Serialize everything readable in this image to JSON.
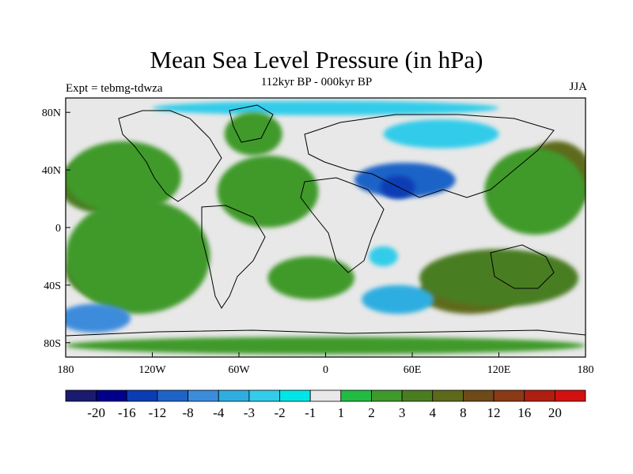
{
  "title": "Mean Sea Level Pressure (in hPa)",
  "subtitle": "112kyr BP - 000kyr BP",
  "experiment": "Expt = tebmg-tdwza",
  "season": "JJA",
  "axes": {
    "y_ticks": [
      {
        "label": "80N",
        "lat": 80
      },
      {
        "label": "40N",
        "lat": 40
      },
      {
        "label": "0",
        "lat": 0
      },
      {
        "label": "40S",
        "lat": -40
      },
      {
        "label": "80S",
        "lat": -80
      }
    ],
    "x_ticks": [
      {
        "label": "180",
        "lon": -180
      },
      {
        "label": "120W",
        "lon": -120
      },
      {
        "label": "60W",
        "lon": -60
      },
      {
        "label": "0",
        "lon": 0
      },
      {
        "label": "60E",
        "lon": 60
      },
      {
        "label": "120E",
        "lon": 120
      },
      {
        "label": "180",
        "lon": 180
      }
    ]
  },
  "colorbar": {
    "colors": [
      "#1a1a6e",
      "#00008b",
      "#0a3cb4",
      "#1e64c8",
      "#3c8cdc",
      "#2eaee0",
      "#33ccea",
      "#00e6e6",
      "#e8e8e8",
      "#22bb44",
      "#3f9a2c",
      "#4a7d20",
      "#5e6a1a",
      "#6e4a18",
      "#8a3a14",
      "#b01e10",
      "#d21010"
    ],
    "labels": [
      "-20",
      "-16",
      "-12",
      "-8",
      "-4",
      "-3",
      "-2",
      "-1",
      "1",
      "2",
      "3",
      "4",
      "8",
      "12",
      "16",
      "20"
    ]
  },
  "regions": [
    {
      "name": "n-pacific-high",
      "lon": -155,
      "lat": 30,
      "rx": 30,
      "ry": 20,
      "level": 11
    },
    {
      "name": "ne-pacific-positive",
      "lon": -140,
      "lat": 35,
      "rx": 40,
      "ry": 25,
      "level": 10
    },
    {
      "name": "s-pacific-high",
      "lon": -140,
      "lat": -30,
      "rx": 40,
      "ry": 22,
      "level": 11
    },
    {
      "name": "s-pacific-band",
      "lon": -130,
      "lat": -20,
      "rx": 50,
      "ry": 40,
      "level": 10
    },
    {
      "name": "atlantic-positive",
      "lon": -40,
      "lat": 25,
      "rx": 35,
      "ry": 25,
      "level": 10
    },
    {
      "name": "s-atlantic-positive",
      "lon": -10,
      "lat": -35,
      "rx": 30,
      "ry": 15,
      "level": 10
    },
    {
      "name": "indian-ocean-high",
      "lon": 100,
      "lat": -45,
      "rx": 35,
      "ry": 15,
      "level": 12
    },
    {
      "name": "s-indian-band",
      "lon": 120,
      "lat": -35,
      "rx": 55,
      "ry": 20,
      "level": 11
    },
    {
      "name": "nw-pacific-high",
      "lon": 160,
      "lat": 35,
      "rx": 25,
      "ry": 25,
      "level": 12
    },
    {
      "name": "w-pacific-band",
      "lon": 145,
      "lat": 25,
      "rx": 35,
      "ry": 30,
      "level": 10
    },
    {
      "name": "eurasia-low",
      "lon": 55,
      "lat": 33,
      "rx": 35,
      "ry": 12,
      "level": 3
    },
    {
      "name": "arabia-low",
      "lon": 50,
      "lat": 28,
      "rx": 12,
      "ry": 8,
      "level": 2
    },
    {
      "name": "siberia-low",
      "lon": 80,
      "lat": 65,
      "rx": 40,
      "ry": 10,
      "level": 6
    },
    {
      "name": "arctic-low",
      "lon": 0,
      "lat": 83,
      "rx": 120,
      "ry": 5,
      "level": 6
    },
    {
      "name": "s-pacific-low",
      "lon": -160,
      "lat": -63,
      "rx": 25,
      "ry": 10,
      "level": 4
    },
    {
      "name": "s-atlantic-low",
      "lon": 50,
      "lat": -50,
      "rx": 25,
      "ry": 10,
      "level": 5
    },
    {
      "name": "madagascar-low",
      "lon": 40,
      "lat": -20,
      "rx": 10,
      "ry": 7,
      "level": 6
    },
    {
      "name": "antarctic-positive",
      "lon": 0,
      "lat": -82,
      "rx": 180,
      "ry": 6,
      "level": 10
    },
    {
      "name": "greenland-positive",
      "lon": -50,
      "lat": 65,
      "rx": 20,
      "ry": 15,
      "level": 10
    }
  ]
}
